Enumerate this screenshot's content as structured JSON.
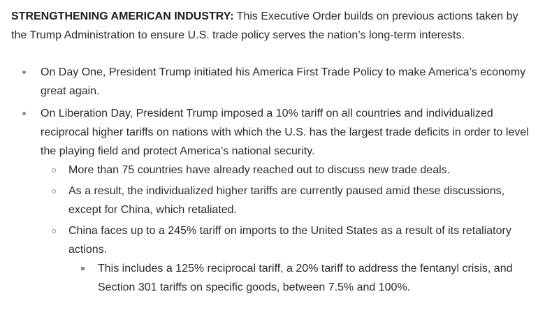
{
  "intro": {
    "lead": "STRENGTHENING AMERICAN INDUSTRY:",
    "text": " This Executive Order builds on previous actions taken by the Trump Administration to ensure U.S. trade policy serves the nation’s long-term interests."
  },
  "bullets": [
    {
      "text": "On Day One, President Trump initiated his America First Trade Policy to make America’s economy great again."
    },
    {
      "text": "On Liberation Day, President Trump imposed a 10% tariff on all countries and individualized reciprocal higher tariffs on nations with which the U.S. has the largest trade deficits in order to level the playing field and protect America’s national security.",
      "sub": [
        {
          "text": "More than 75 countries have already reached out to discuss new trade deals."
        },
        {
          "text": "As a result, the individualized higher tariffs are currently paused amid these discussions, except for China, which retaliated."
        },
        {
          "text": "China faces up to a 245% tariff on imports to the United States as a result of its retaliatory actions.",
          "sub": [
            {
              "text": "This includes a 125% reciprocal tariff, a 20% tariff to address the fentanyl crisis, and Section 301 tariffs on specific goods, between 7.5% and 100%."
            }
          ]
        }
      ]
    }
  ]
}
